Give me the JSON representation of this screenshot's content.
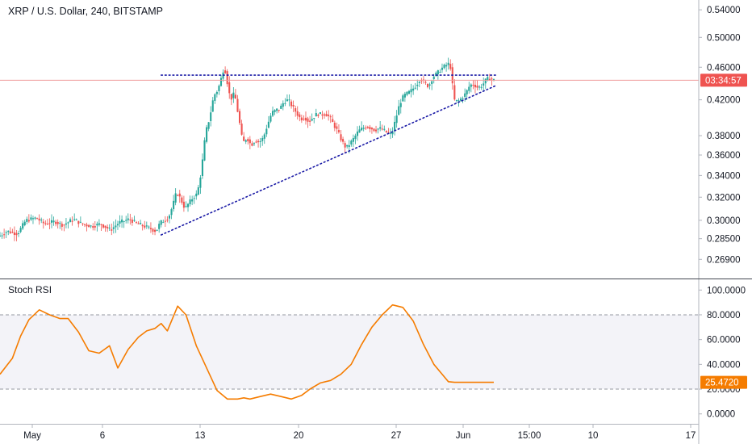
{
  "header": {
    "symbol_title": "XRP / U.S. Dollar, 240, BITSTAMP",
    "indicator_title": "Stoch RSI"
  },
  "colors": {
    "up": "#26a69a",
    "down": "#ef5350",
    "trendline": "#1a1aa6",
    "rsi_line": "#f57c00",
    "rsi_band_fill": "#f3f3f8",
    "current_price_line": "#ef9a9a",
    "price_label_bg": "#ef5350",
    "rsi_label_bg": "#f57c00",
    "axis_text": "#131722"
  },
  "chart_data": [
    {
      "type": "candlestick",
      "title": "XRP / U.S. Dollar, 240, BITSTAMP",
      "scale": "log",
      "ylim": [
        0.255,
        0.555
      ],
      "y_ticks": [
        "0.54000",
        "0.50000",
        "0.46000",
        "0.42000",
        "0.38000",
        "0.36000",
        "0.34000",
        "0.32000",
        "0.30000",
        "0.28500",
        "0.26900"
      ],
      "x_ticks": [
        "May",
        "6",
        "13",
        "20",
        "27",
        "Jun",
        "15:00",
        "10",
        "17"
      ],
      "current_price_label": "03:34:57",
      "current_price": 0.4436,
      "path": [
        [
          0,
          0.287
        ],
        [
          4,
          0.291
        ],
        [
          9,
          0.289
        ],
        [
          13,
          0.3
        ],
        [
          18,
          0.302
        ],
        [
          22,
          0.297
        ],
        [
          27,
          0.299
        ],
        [
          31,
          0.296
        ],
        [
          36,
          0.301
        ],
        [
          40,
          0.297
        ],
        [
          45,
          0.295
        ],
        [
          49,
          0.297
        ],
        [
          54,
          0.292
        ],
        [
          58,
          0.298
        ],
        [
          63,
          0.301
        ],
        [
          67,
          0.297
        ],
        [
          72,
          0.294
        ],
        [
          76,
          0.291
        ],
        [
          78,
          0.298
        ],
        [
          82,
          0.302
        ],
        [
          84,
          0.312
        ],
        [
          86,
          0.325
        ],
        [
          88,
          0.318
        ],
        [
          90,
          0.31
        ],
        [
          92,
          0.315
        ],
        [
          94,
          0.32
        ],
        [
          96,
          0.323
        ],
        [
          98,
          0.345
        ],
        [
          100,
          0.383
        ],
        [
          102,
          0.4
        ],
        [
          104,
          0.425
        ],
        [
          106,
          0.432
        ],
        [
          108,
          0.45
        ],
        [
          109,
          0.462
        ],
        [
          110,
          0.448
        ],
        [
          112,
          0.42
        ],
        [
          114,
          0.428
        ],
        [
          116,
          0.4
        ],
        [
          118,
          0.372
        ],
        [
          120,
          0.378
        ],
        [
          122,
          0.37
        ],
        [
          124,
          0.375
        ],
        [
          126,
          0.373
        ],
        [
          128,
          0.378
        ],
        [
          130,
          0.392
        ],
        [
          132,
          0.405
        ],
        [
          134,
          0.408
        ],
        [
          136,
          0.41
        ],
        [
          138,
          0.418
        ],
        [
          140,
          0.42
        ],
        [
          142,
          0.412
        ],
        [
          144,
          0.405
        ],
        [
          146,
          0.398
        ],
        [
          148,
          0.4
        ],
        [
          150,
          0.395
        ],
        [
          152,
          0.4
        ],
        [
          154,
          0.404
        ],
        [
          156,
          0.403
        ],
        [
          158,
          0.404
        ],
        [
          160,
          0.4
        ],
        [
          162,
          0.392
        ],
        [
          164,
          0.384
        ],
        [
          166,
          0.374
        ],
        [
          168,
          0.367
        ],
        [
          170,
          0.372
        ],
        [
          172,
          0.378
        ],
        [
          174,
          0.385
        ],
        [
          176,
          0.388
        ],
        [
          178,
          0.39
        ],
        [
          180,
          0.388
        ],
        [
          182,
          0.386
        ],
        [
          184,
          0.388
        ],
        [
          186,
          0.386
        ],
        [
          188,
          0.383
        ],
        [
          190,
          0.381
        ],
        [
          192,
          0.398
        ],
        [
          194,
          0.416
        ],
        [
          196,
          0.425
        ],
        [
          198,
          0.428
        ],
        [
          200,
          0.432
        ],
        [
          202,
          0.438
        ],
        [
          204,
          0.446
        ],
        [
          206,
          0.44
        ],
        [
          208,
          0.436
        ],
        [
          210,
          0.448
        ],
        [
          212,
          0.452
        ],
        [
          214,
          0.458
        ],
        [
          216,
          0.462
        ],
        [
          218,
          0.465
        ],
        [
          219,
          0.455
        ],
        [
          220,
          0.42
        ],
        [
          222,
          0.418
        ],
        [
          224,
          0.422
        ],
        [
          226,
          0.428
        ],
        [
          228,
          0.438
        ],
        [
          230,
          0.438
        ],
        [
          232,
          0.434
        ],
        [
          234,
          0.438
        ],
        [
          236,
          0.445
        ],
        [
          238,
          0.446
        ],
        [
          239,
          0.4436
        ]
      ],
      "lines": [
        {
          "name": "",
          "kind": "resistance",
          "points": [
            [
              78,
              0.45
            ],
            [
              240,
              0.45
            ]
          ]
        },
        {
          "name": "",
          "kind": "support",
          "points": [
            [
              78,
              0.288
            ],
            [
              240,
              0.437
            ]
          ]
        }
      ]
    },
    {
      "type": "line",
      "title": "Stoch RSI",
      "ylim": [
        -8,
        108
      ],
      "y_ticks": [
        "100.0000",
        "80.0000",
        "60.0000",
        "40.0000",
        "20.0000",
        "0.0000"
      ],
      "bands": [
        20,
        80
      ],
      "current_value_label": "25.4720",
      "series": [
        {
          "name": "",
          "x": [
            0,
            6,
            10,
            14,
            19,
            24,
            29,
            33,
            38,
            43,
            48,
            53,
            57,
            62,
            67,
            71,
            75,
            78,
            81,
            86,
            90,
            95,
            100,
            105,
            110,
            115,
            118,
            121,
            126,
            131,
            136,
            141,
            146,
            150,
            155,
            160,
            165,
            170,
            175,
            180,
            185,
            190,
            195,
            200,
            205,
            210,
            214,
            217,
            220,
            224,
            229,
            234,
            239
          ],
          "values": [
            32,
            45,
            63,
            76,
            84,
            80,
            77,
            77,
            66,
            51,
            49,
            55,
            37,
            52,
            62,
            67,
            69,
            73,
            67,
            87,
            80,
            55,
            37,
            19,
            12,
            12,
            13,
            12,
            14,
            16,
            14,
            12,
            15,
            20,
            25,
            27,
            32,
            40,
            56,
            70,
            80,
            88,
            86,
            75,
            56,
            40,
            32,
            26,
            25.47,
            25.47,
            25.47,
            25.47,
            25.47
          ]
        }
      ]
    }
  ]
}
